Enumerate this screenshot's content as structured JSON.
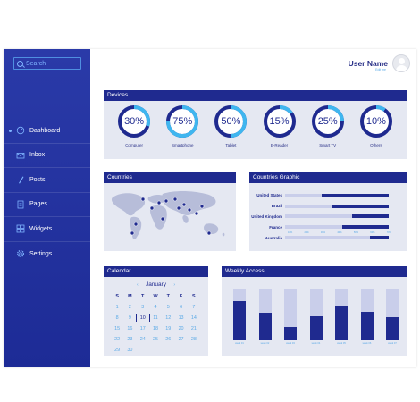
{
  "sidebar": {
    "search_placeholder": "Search",
    "items": [
      {
        "label": "Dashboard",
        "icon": "dashboard-icon",
        "active": true
      },
      {
        "label": "Inbox",
        "icon": "mail-icon"
      },
      {
        "label": "Posts",
        "icon": "pencil-icon"
      },
      {
        "label": "Pages",
        "icon": "pages-icon"
      },
      {
        "label": "Widgets",
        "icon": "widgets-icon"
      },
      {
        "label": "Settings",
        "icon": "gear-icon"
      }
    ]
  },
  "header": {
    "user_name": "User Name",
    "user_sub": "Edit me"
  },
  "devices": {
    "title": "Devices",
    "items": [
      {
        "label": "Computer",
        "percent": "30%",
        "value": 30
      },
      {
        "label": "Smartphone",
        "percent": "75%",
        "value": 75
      },
      {
        "label": "Tablet",
        "percent": "50%",
        "value": 50
      },
      {
        "label": "E-Reader",
        "percent": "15%",
        "value": 15
      },
      {
        "label": "Smart TV",
        "percent": "25%",
        "value": 25
      },
      {
        "label": "Others",
        "percent": "10%",
        "value": 10
      }
    ]
  },
  "countries": {
    "title": "Countries"
  },
  "countries_graphic": {
    "title": "Countries Graphic",
    "rows": [
      {
        "label": "United States",
        "value": 65
      },
      {
        "label": "Brazil",
        "value": 55
      },
      {
        "label": "United Kingdom",
        "value": 35
      },
      {
        "label": "France",
        "value": 45
      },
      {
        "label": "Australia",
        "value": 18
      }
    ],
    "ticks": [
      "10%",
      "20%",
      "30%",
      "40%",
      "50%",
      "60%",
      "70%"
    ]
  },
  "calendar": {
    "title": "Calendar",
    "month": "January",
    "prev": "‹",
    "next": "›",
    "day_headers": [
      "S",
      "M",
      "T",
      "W",
      "T",
      "F",
      "S"
    ],
    "days": [
      "1",
      "2",
      "3",
      "4",
      "5",
      "6",
      "7",
      "8",
      "9",
      "10",
      "11",
      "12",
      "13",
      "14",
      "15",
      "16",
      "17",
      "18",
      "19",
      "20",
      "21",
      "22",
      "23",
      "24",
      "25",
      "26",
      "27",
      "28",
      "29",
      "30"
    ],
    "today": "10"
  },
  "weekly": {
    "title": "Weekly Access",
    "bars": [
      {
        "label": "week 01",
        "value": 78
      },
      {
        "label": "week 02",
        "value": 55
      },
      {
        "label": "week 03",
        "value": 27
      },
      {
        "label": "week 04",
        "value": 47
      },
      {
        "label": "week 05",
        "value": 68
      },
      {
        "label": "week 06",
        "value": 57
      },
      {
        "label": "week 07",
        "value": 45
      }
    ]
  },
  "colors": {
    "primary": "#1f2a8f",
    "accent": "#3fb6ef",
    "track": "#c9ceea"
  }
}
